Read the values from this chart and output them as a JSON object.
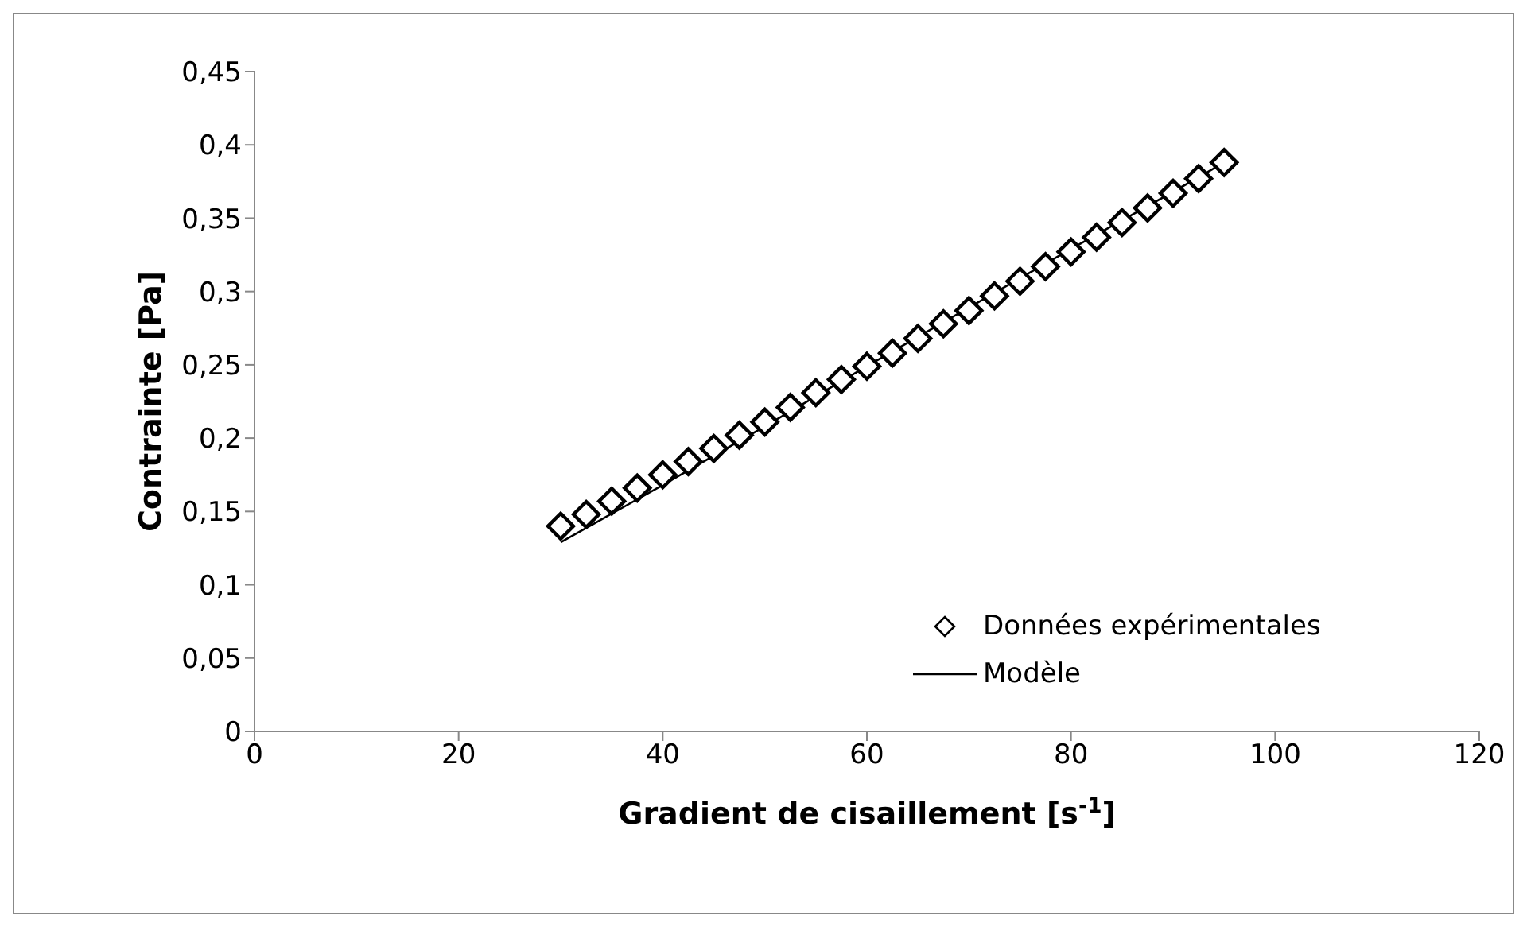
{
  "chart_data": {
    "type": "scatter",
    "xlabel": "Gradient de cisaillement [s$^{-1}$]",
    "ylabel": "Contrainte [Pa]",
    "xlim": [
      0,
      120
    ],
    "xticks": [
      0,
      20,
      40,
      60,
      80,
      100,
      120
    ],
    "ylim": [
      0,
      0.45
    ],
    "yticks": [
      {
        "value": 0,
        "label": "0"
      },
      {
        "value": 0.05,
        "label": "0,05"
      },
      {
        "value": 0.1,
        "label": "0,1"
      },
      {
        "value": 0.15,
        "label": "0,15"
      },
      {
        "value": 0.2,
        "label": "0,2"
      },
      {
        "value": 0.25,
        "label": "0,25"
      },
      {
        "value": 0.3,
        "label": "0,3"
      },
      {
        "value": 0.35,
        "label": "0,35"
      },
      {
        "value": 0.4,
        "label": "0,4"
      },
      {
        "value": 0.45,
        "label": "0,45"
      }
    ],
    "grid": false,
    "legend": "bottom right",
    "marker": "diamond",
    "series": [
      {
        "name": "Données expérimentales",
        "color": "#000000",
        "x": [
          30,
          32.5,
          35,
          37.5,
          40,
          42.5,
          45,
          47.5,
          50,
          52.5,
          55,
          57.5,
          60,
          62.5,
          65,
          67.5,
          70,
          72.5,
          75,
          77.5,
          80,
          82.5,
          85,
          87.5,
          90,
          92.5,
          95
        ],
        "values": [
          0.14,
          0.148,
          0.157,
          0.166,
          0.175,
          0.184,
          0.193,
          0.202,
          0.211,
          0.221,
          0.231,
          0.24,
          0.249,
          0.258,
          0.268,
          0.278,
          0.287,
          0.297,
          0.307,
          0.317,
          0.327,
          0.337,
          0.347,
          0.357,
          0.367,
          0.377,
          0.388
        ]
      },
      {
        "name": "Modèle",
        "type": "line",
        "color": "#000000",
        "marker": "none",
        "line_style": "solid",
        "x": [
          30,
          40,
          50,
          60,
          70,
          80,
          90,
          95
        ],
        "values": [
          0.129,
          0.168,
          0.208,
          0.249,
          0.289,
          0.329,
          0.368,
          0.388
        ]
      }
    ]
  }
}
